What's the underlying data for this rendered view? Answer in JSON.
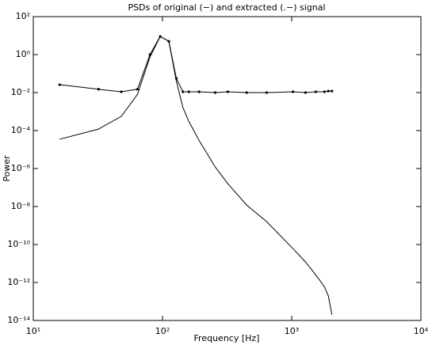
{
  "chart_data": {
    "type": "line",
    "title": "PSDs of original (−) and extracted (.−) signal",
    "x_label": "Frequency [Hz]",
    "y_label": "Power",
    "x": [
      16,
      32,
      48,
      64,
      80,
      96,
      112,
      128,
      144,
      160,
      192,
      256,
      320,
      448,
      640,
      1024,
      1280,
      1536,
      1792,
      1920,
      2048
    ],
    "series": [
      {
        "color": "#000000",
        "markers": false,
        "values": [
          3.5e-05,
          0.00012,
          0.00056,
          0.008,
          0.75,
          9,
          5,
          0.04,
          0.0016,
          0.0003,
          3e-05,
          1.2e-06,
          1.6e-07,
          1.2e-08,
          1.6e-09,
          6e-11,
          1.2e-11,
          2.5e-12,
          6e-13,
          2e-13,
          2e-14
        ]
      },
      {
        "color": "#000000",
        "markers": true,
        "values": [
          0.026,
          0.015,
          0.011,
          0.015,
          1.0,
          9,
          5,
          0.056,
          0.011,
          0.011,
          0.011,
          0.01,
          0.011,
          0.01,
          0.01,
          0.011,
          0.01,
          0.011,
          0.011,
          0.012,
          0.012
        ]
      }
    ],
    "xlog": true,
    "ylog": true,
    "xlim": [
      10,
      10000
    ],
    "ylim": [
      1e-14,
      100
    ],
    "xticks": [
      {
        "value": 10,
        "label": "10¹"
      },
      {
        "value": 100,
        "label": "10²"
      },
      {
        "value": 1000,
        "label": "10³"
      },
      {
        "value": 10000,
        "label": "10⁴"
      }
    ],
    "yticks": [
      {
        "value": 1e-14,
        "label": "10⁻¹⁴"
      },
      {
        "value": 1e-12,
        "label": "10⁻¹²"
      },
      {
        "value": 1e-10,
        "label": "10⁻¹⁰"
      },
      {
        "value": 1e-08,
        "label": "10⁻⁸"
      },
      {
        "value": 1e-06,
        "label": "10⁻⁶"
      },
      {
        "value": 0.0001,
        "label": "10⁻⁴"
      },
      {
        "value": 0.01,
        "label": "10⁻²"
      },
      {
        "value": 1,
        "label": "10⁰"
      },
      {
        "value": 100,
        "label": "10²"
      }
    ],
    "grid": false
  }
}
